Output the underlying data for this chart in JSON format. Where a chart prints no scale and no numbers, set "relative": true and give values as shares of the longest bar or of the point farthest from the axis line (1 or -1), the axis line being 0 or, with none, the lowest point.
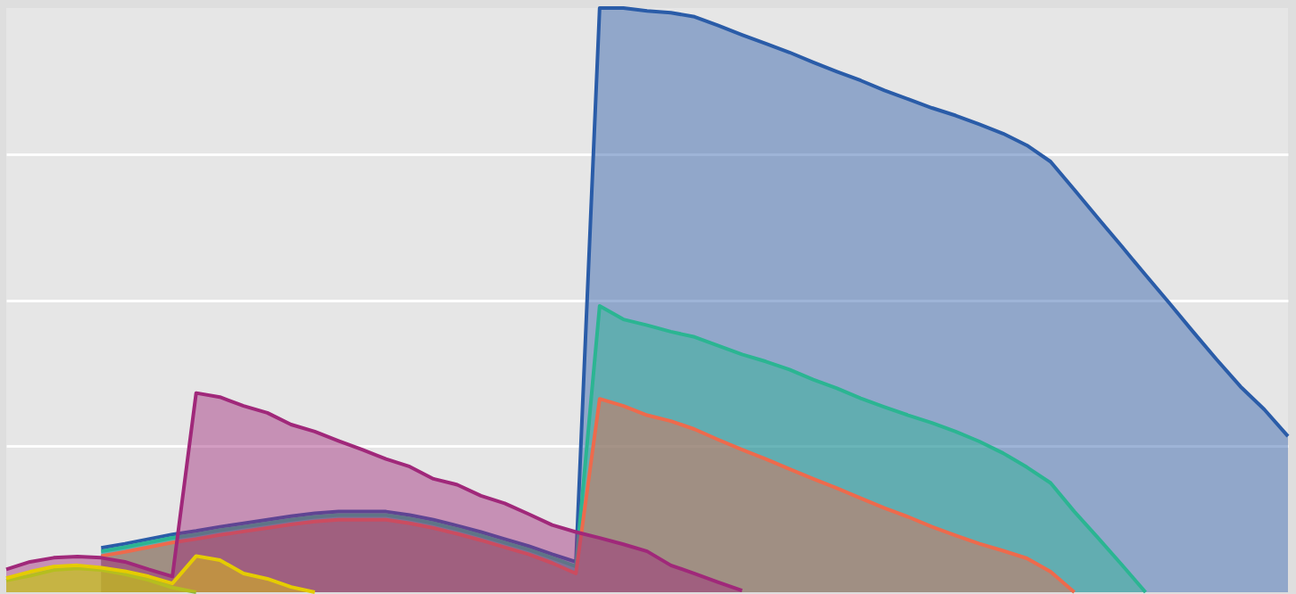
{
  "chart_data": {
    "type": "area",
    "relative": true,
    "grid": "y",
    "line_style": "solid",
    "marker": "none",
    "categories": [
      null,
      null,
      null,
      null,
      null,
      null,
      null,
      null,
      null,
      null,
      null,
      null,
      null,
      null,
      null,
      null,
      null,
      null,
      null,
      null,
      null,
      null,
      null,
      null,
      null,
      null,
      null,
      null,
      null,
      null,
      null,
      null,
      null,
      null,
      null,
      null,
      null,
      null,
      null,
      null,
      null,
      null,
      null,
      null,
      null,
      null,
      null,
      null,
      null,
      null,
      null,
      null,
      null,
      null,
      null
    ],
    "series": [
      {
        "color": "#2a5ca8",
        "values": [
          null,
          null,
          null,
          null,
          0.076,
          0.083,
          0.091,
          0.099,
          0.105,
          0.112,
          0.118,
          0.124,
          0.13,
          0.135,
          0.138,
          0.138,
          0.138,
          0.132,
          0.124,
          0.114,
          0.103,
          0.091,
          0.079,
          0.065,
          0.052,
          1.0,
          1.0,
          0.995,
          0.992,
          0.985,
          0.97,
          0.954,
          0.939,
          0.924,
          0.907,
          0.891,
          0.876,
          0.859,
          0.844,
          0.829,
          0.816,
          0.801,
          0.785,
          0.765,
          0.737,
          0.689,
          0.64,
          0.592,
          0.543,
          0.495,
          0.446,
          0.398,
          0.352,
          0.313,
          0.267
        ]
      },
      {
        "color": "#2bb592",
        "values": [
          null,
          null,
          null,
          null,
          0.07,
          0.077,
          0.085,
          0.093,
          0.099,
          0.106,
          0.112,
          0.118,
          0.124,
          0.129,
          0.132,
          0.132,
          0.132,
          0.126,
          0.118,
          0.108,
          0.097,
          0.085,
          0.073,
          0.059,
          0.044,
          0.49,
          0.467,
          0.457,
          0.446,
          0.437,
          0.422,
          0.407,
          0.395,
          0.381,
          0.364,
          0.349,
          0.332,
          0.317,
          0.303,
          0.29,
          0.275,
          0.258,
          0.238,
          0.214,
          0.187,
          0.138,
          0.093,
          0.047,
          0.0,
          null,
          null,
          null,
          null,
          null,
          null
        ]
      },
      {
        "color": "#ee6a4c",
        "values": [
          null,
          null,
          null,
          null,
          0.062,
          0.069,
          0.077,
          0.085,
          0.091,
          0.098,
          0.104,
          0.11,
          0.116,
          0.121,
          0.124,
          0.124,
          0.124,
          0.118,
          0.11,
          0.1,
          0.089,
          0.077,
          0.065,
          0.05,
          0.032,
          0.331,
          0.319,
          0.303,
          0.293,
          0.279,
          0.261,
          0.244,
          0.228,
          0.211,
          0.194,
          0.178,
          0.161,
          0.144,
          0.129,
          0.112,
          0.097,
          0.083,
          0.071,
          0.058,
          0.035,
          0.0,
          null,
          null,
          null,
          null,
          null,
          null,
          null,
          null,
          null
        ]
      },
      {
        "color": "#a0287a",
        "values": [
          0.039,
          0.052,
          0.059,
          0.061,
          0.059,
          0.052,
          0.039,
          0.027,
          0.341,
          0.334,
          0.319,
          0.307,
          0.287,
          0.275,
          0.259,
          0.244,
          0.228,
          0.215,
          0.194,
          0.184,
          0.165,
          0.152,
          0.134,
          0.115,
          0.103,
          0.093,
          0.082,
          0.07,
          0.046,
          0.032,
          0.017,
          0.003,
          null,
          null,
          null,
          null,
          null,
          null,
          null,
          null,
          null,
          null,
          null,
          null,
          null,
          null,
          null,
          null,
          null,
          null,
          null,
          null,
          null,
          null,
          null
        ]
      },
      {
        "color": "#8fb339",
        "values": [
          0.02,
          0.028,
          0.038,
          0.041,
          0.038,
          0.031,
          0.021,
          0.008,
          0.0,
          null,
          null,
          null,
          null,
          null,
          null,
          null,
          null,
          null,
          null,
          null,
          null,
          null,
          null,
          null,
          null,
          null,
          null,
          null,
          null,
          null,
          null,
          null,
          null,
          null,
          null,
          null,
          null,
          null,
          null,
          null,
          null,
          null,
          null,
          null,
          null,
          null,
          null,
          null,
          null,
          null,
          null,
          null,
          null,
          null,
          null
        ]
      },
      {
        "color": "#e5cc00",
        "values": [
          0.024,
          0.035,
          0.044,
          0.046,
          0.042,
          0.036,
          0.027,
          0.015,
          0.062,
          0.055,
          0.032,
          0.023,
          0.009,
          0.0,
          null,
          null,
          null,
          null,
          null,
          null,
          null,
          null,
          null,
          null,
          null,
          null,
          null,
          null,
          null,
          null,
          null,
          null,
          null,
          null,
          null,
          null,
          null,
          null,
          null,
          null,
          null,
          null,
          null,
          null,
          null,
          null,
          null,
          null,
          null,
          null,
          null,
          null,
          null,
          null,
          null
        ]
      }
    ]
  }
}
